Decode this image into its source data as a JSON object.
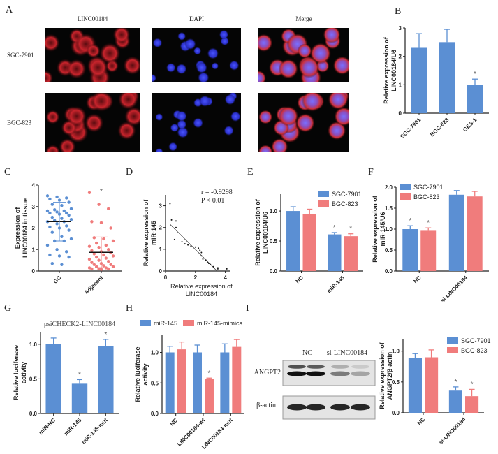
{
  "colors": {
    "blue": "#5b8fd3",
    "red": "#f07c7c",
    "axis": "#222222"
  },
  "panel_a": {
    "label": "A",
    "columns": [
      "LINC00184",
      "DAPI",
      "Merge"
    ],
    "rows": [
      "SGC-7901",
      "BGC-823"
    ]
  },
  "panel_i_blot": {
    "groups": [
      "NC",
      "si-LINC00184"
    ],
    "bands": [
      "ANGPT2",
      "β-actin"
    ]
  },
  "chart_data": [
    {
      "id": "B",
      "label": "B",
      "type": "bar",
      "ylabel": [
        "Relative expression of",
        "LINC00184/U6"
      ],
      "categories": [
        "SGC-7901",
        "BGC-823",
        "GES-1"
      ],
      "series": [
        {
          "values": [
            2.3,
            2.5,
            1.0
          ],
          "errors": [
            0.5,
            0.45,
            0.2
          ],
          "sig": [
            false,
            false,
            true
          ]
        }
      ],
      "ylim": [
        0,
        3
      ],
      "yticks": [
        "0",
        "1",
        "2",
        "3"
      ]
    },
    {
      "id": "C",
      "label": "C",
      "type": "scatter",
      "ylabel": [
        "Expression of",
        "LINC00184 in tissue"
      ],
      "categories": [
        "GC",
        "Adjacent"
      ],
      "groups": [
        {
          "values": [
            3.5,
            3.45,
            3.4,
            3.35,
            3.3,
            3.2,
            3.1,
            3.05,
            2.9,
            2.85,
            2.8,
            2.8,
            2.75,
            2.7,
            2.7,
            2.65,
            2.6,
            2.5,
            2.45,
            2.4,
            2.35,
            2.3,
            2.3,
            2.2,
            2.1,
            2.05,
            2.0,
            1.9,
            1.8,
            1.6,
            1.5,
            1.4,
            1.4,
            1.2,
            1.0,
            0.9,
            0.75,
            0.7,
            0.65,
            0.35,
            0.3
          ],
          "mean": 2.3,
          "sd": 0.9,
          "sig": false
        },
        {
          "values": [
            3.65,
            3.1,
            2.9,
            2.3,
            2.25,
            2.0,
            1.55,
            1.5,
            1.4,
            1.3,
            1.2,
            1.15,
            1.1,
            1.0,
            0.95,
            0.9,
            0.85,
            0.8,
            0.75,
            0.7,
            0.65,
            0.6,
            0.55,
            0.5,
            0.45,
            0.4,
            0.35,
            0.3,
            0.3,
            0.25,
            0.2,
            0.2,
            0.15,
            0.15,
            0.1,
            0.1,
            0.1,
            0.08
          ],
          "mean": 0.87,
          "sd": 0.71,
          "sig": true
        }
      ],
      "ylim": [
        0,
        4
      ],
      "yticks": [
        "0",
        "1",
        "2",
        "3",
        "4"
      ]
    },
    {
      "id": "D",
      "label": "D",
      "type": "scatter",
      "xlabel": [
        "Relative expression of",
        "LINC00184"
      ],
      "ylabel": [
        "Relative expression of",
        "miR-145"
      ],
      "points": [
        [
          0.3,
          3.1
        ],
        [
          0.4,
          2.35
        ],
        [
          0.7,
          2.3
        ],
        [
          0.7,
          2.0
        ],
        [
          0.6,
          1.45
        ],
        [
          1.1,
          1.35
        ],
        [
          1.3,
          1.25
        ],
        [
          1.5,
          1.2
        ],
        [
          1.7,
          1.15
        ],
        [
          2.0,
          1.1
        ],
        [
          2.2,
          1.05
        ],
        [
          2.3,
          0.95
        ],
        [
          2.4,
          0.85
        ],
        [
          2.4,
          0.7
        ],
        [
          2.5,
          0.55
        ],
        [
          2.7,
          0.5
        ],
        [
          2.8,
          0.4
        ],
        [
          2.9,
          0.35
        ],
        [
          3.0,
          0.3
        ],
        [
          3.2,
          0.2
        ],
        [
          3.5,
          0.15
        ],
        [
          3.5,
          0.1
        ],
        [
          4.1,
          0.1
        ]
      ],
      "fit": [
        [
          0.3,
          2.15
        ],
        [
          3.45,
          0
        ]
      ],
      "annotation": [
        "r = -0.9298",
        "P < 0.01"
      ],
      "xlim": [
        0,
        5
      ],
      "ylim": [
        0,
        3.5
      ],
      "xticks": [
        "0",
        "2",
        "4"
      ],
      "yticks": [
        "0",
        "1",
        "2",
        "3"
      ]
    },
    {
      "id": "E",
      "label": "E",
      "type": "bar",
      "ylabel": [
        "Relative expression of",
        "LINC00184/U6"
      ],
      "categories": [
        "NC",
        "miR-145"
      ],
      "series": [
        {
          "name": "SGC-7901",
          "values": [
            1.0,
            0.61
          ],
          "errors": [
            0.07,
            0.03
          ],
          "sig": [
            false,
            true
          ]
        },
        {
          "name": "BGC-823",
          "values": [
            0.95,
            0.58
          ],
          "errors": [
            0.08,
            0.04
          ],
          "sig": [
            false,
            true
          ]
        }
      ],
      "ylim": [
        0,
        1.28
      ],
      "yticks": [
        "0.0",
        "0.5",
        "1.0"
      ],
      "legend": "top-right"
    },
    {
      "id": "F",
      "label": "F",
      "type": "bar",
      "ylabel": [
        "Relative expression of",
        "miR-145/U6"
      ],
      "categories": [
        "NC",
        "si-LINC00184"
      ],
      "series": [
        {
          "name": "SGC-7901",
          "values": [
            1.0,
            1.82
          ],
          "errors": [
            0.08,
            0.1
          ],
          "sig": [
            true,
            false
          ]
        },
        {
          "name": "BGC-823",
          "values": [
            0.96,
            1.78
          ],
          "errors": [
            0.07,
            0.12
          ],
          "sig": [
            true,
            false
          ]
        }
      ],
      "ylim": [
        0,
        2.0
      ],
      "yticks": [
        "0.0",
        "0.5",
        "1.0",
        "1.5",
        "2.0"
      ],
      "legend": "top-left"
    },
    {
      "id": "G",
      "label": "G",
      "type": "bar",
      "title": "psiCHECK2-LINC00184",
      "ylabel": [
        "Relative luciferase",
        "activity"
      ],
      "categories": [
        "miR-NC",
        "miR-145",
        "miR-145-mut"
      ],
      "series": [
        {
          "values": [
            1.0,
            0.43,
            0.97
          ],
          "errors": [
            0.09,
            0.06,
            0.1
          ],
          "sig": [
            false,
            true,
            true
          ]
        }
      ],
      "ylim": [
        0,
        1.18
      ],
      "yticks": [
        "0.0",
        "0.5",
        "1.0"
      ]
    },
    {
      "id": "H",
      "label": "H",
      "type": "bar",
      "ylabel": [
        "Relative luciferase",
        "activity"
      ],
      "categories": [
        "NC",
        "LINC00184-wt",
        "LINC00184-mut"
      ],
      "series": [
        {
          "name": "miR-145",
          "values": [
            1.0,
            1.0,
            1.0
          ],
          "errors": [
            0.1,
            0.12,
            0.14
          ],
          "sig": [
            false,
            false,
            false
          ]
        },
        {
          "name": "miR-145-mimics",
          "values": [
            1.05,
            0.57,
            1.09
          ],
          "errors": [
            0.12,
            0.01,
            0.12
          ],
          "sig": [
            false,
            true,
            false
          ]
        }
      ],
      "ylim": [
        0,
        1.28
      ],
      "yticks": [
        "0.0",
        "0.5",
        "1.0"
      ],
      "legend": "top"
    },
    {
      "id": "I",
      "label": "I",
      "type": "bar",
      "ylabel": [
        "Relative expression of",
        "ANGPT2/β-actin"
      ],
      "categories": [
        "NC",
        "si-LINC00184"
      ],
      "series": [
        {
          "name": "SGC-7901",
          "values": [
            0.89,
            0.36
          ],
          "errors": [
            0.07,
            0.06
          ],
          "sig": [
            false,
            true
          ]
        },
        {
          "name": "BGC-823",
          "values": [
            0.9,
            0.27
          ],
          "errors": [
            0.12,
            0.11
          ],
          "sig": [
            false,
            true
          ]
        }
      ],
      "ylim": [
        0,
        1.2
      ],
      "yticks": [
        "0.0",
        "0.5",
        "1.0"
      ],
      "legend": "top-right"
    }
  ]
}
